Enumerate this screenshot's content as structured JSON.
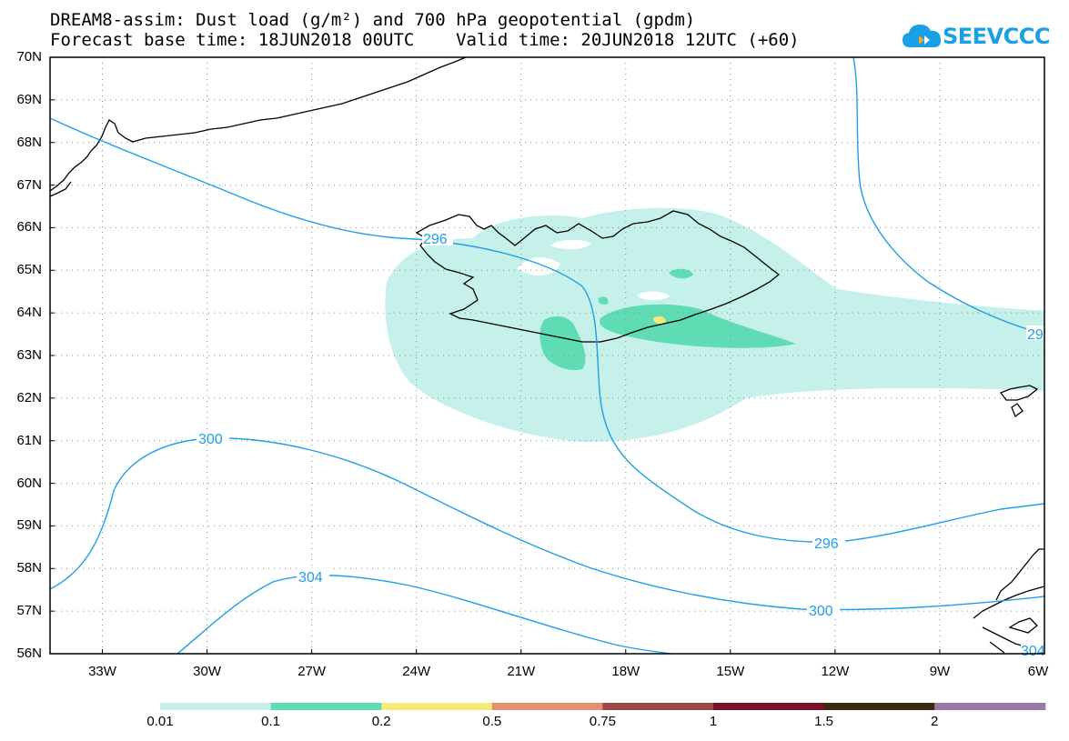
{
  "title_line1": "DREAM8-assim: Dust load (g/m²) and 700 hPa geopotential (gpdm)",
  "title_line2": "Forecast base time: 18JUN2018 00UTC    Valid time: 20JUN2018 12UTC (+60)",
  "logo_text": "SEEVCCC",
  "lat_labels": [
    "70N",
    "69N",
    "68N",
    "67N",
    "66N",
    "65N",
    "64N",
    "63N",
    "62N",
    "61N",
    "60N",
    "59N",
    "58N",
    "57N",
    "56N"
  ],
  "lon_labels": [
    "33W",
    "30W",
    "27W",
    "24W",
    "21W",
    "18W",
    "15W",
    "12W",
    "9W",
    "6W"
  ],
  "contour_labels": {
    "c296_a": "296",
    "c296_b": "296",
    "c296_c": "29",
    "c300_a": "300",
    "c300_b": "300",
    "c304_a": "304",
    "c304_b": "304"
  },
  "colorbar": {
    "labels": [
      "0.01",
      "0.1",
      "0.2",
      "0.5",
      "0.75",
      "1",
      "1.5",
      "2"
    ],
    "colors": [
      "#c6f0ea",
      "#5fdcb4",
      "#f5e97a",
      "#e8906e",
      "#9a4848",
      "#7a0f2a",
      "#3a2812",
      "#9a78a8"
    ]
  },
  "colors": {
    "contour": "#1f9fe6",
    "dust_low": "#c6f0ea",
    "dust_mid": "#5fdcb4",
    "dust_high": "#f5e97a",
    "logo": "#1aa0e6"
  }
}
